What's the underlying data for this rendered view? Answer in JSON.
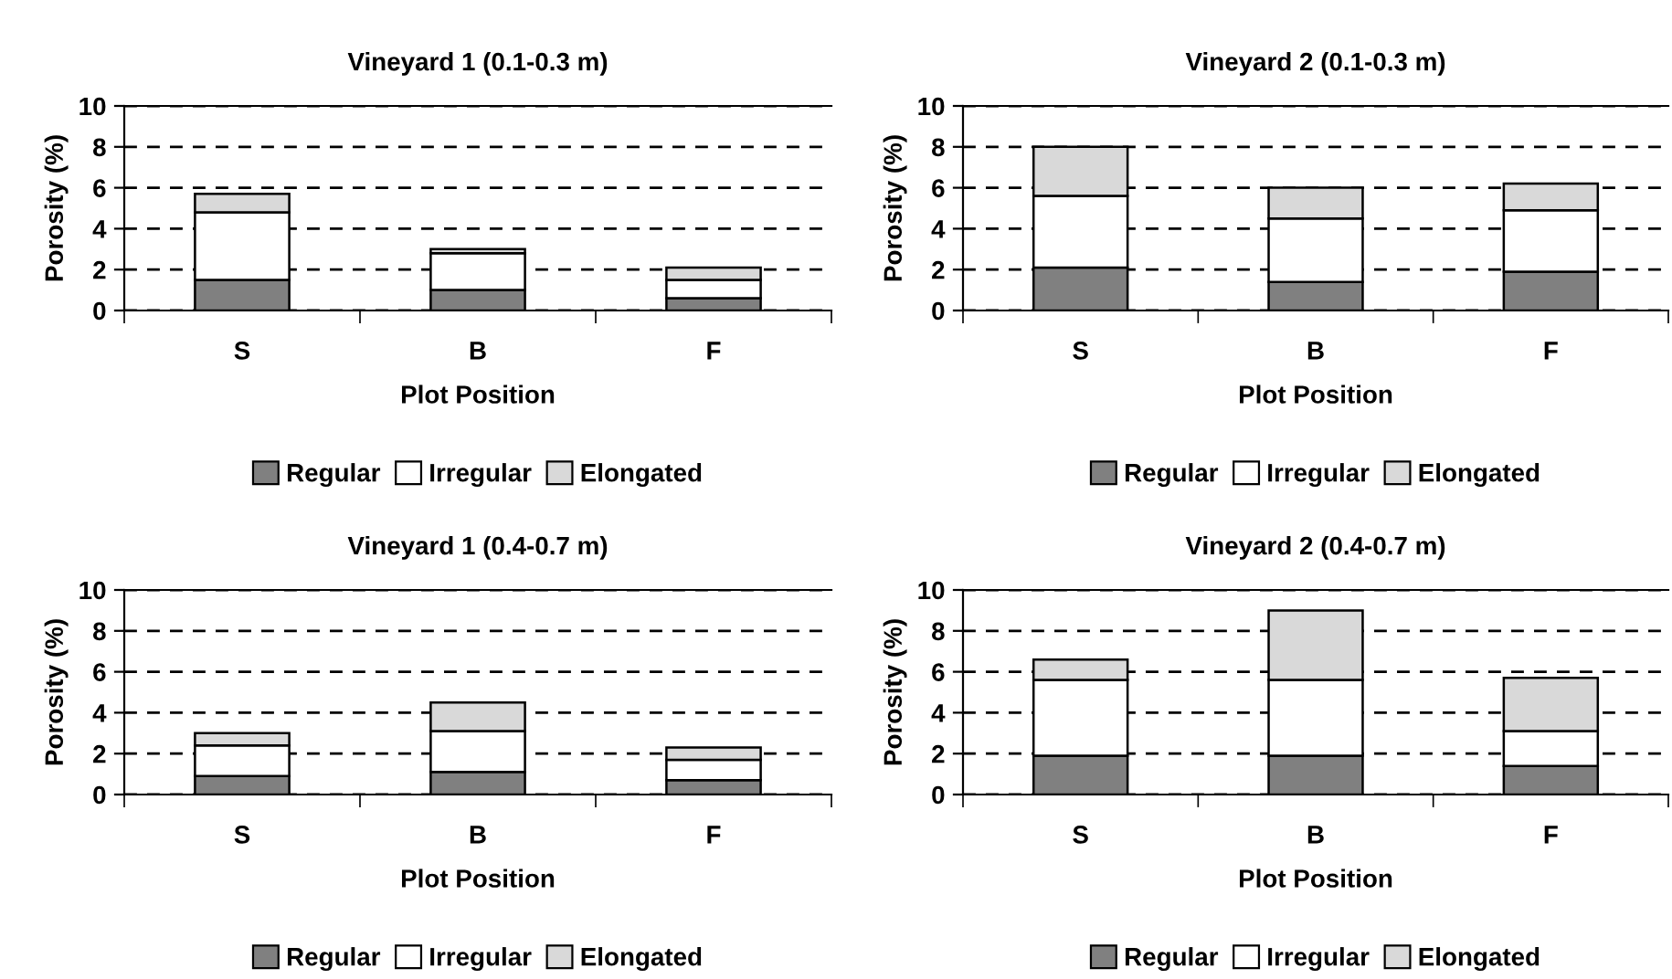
{
  "chart_data": [
    {
      "type": "bar",
      "stacked": true,
      "title": "Vineyard 1 (0.1-0.3 m)",
      "xlabel": "Plot Position",
      "ylabel": "Porosity (%)",
      "categories": [
        "S",
        "B",
        "F"
      ],
      "ylim": [
        0,
        10
      ],
      "yticks": [
        0,
        2,
        4,
        6,
        8,
        10
      ],
      "grid": "y",
      "legend": "bottom",
      "series": [
        {
          "name": "Regular",
          "color": "#808080",
          "values": [
            1.5,
            1.0,
            0.6
          ]
        },
        {
          "name": "Irregular",
          "color": "#ffffff",
          "values": [
            3.3,
            1.8,
            0.9
          ]
        },
        {
          "name": "Elongated",
          "color": "#d9d9d9",
          "values": [
            0.9,
            0.2,
            0.6
          ]
        }
      ]
    },
    {
      "type": "bar",
      "stacked": true,
      "title": "Vineyard 2 (0.1-0.3 m)",
      "xlabel": "Plot Position",
      "ylabel": "Porosity (%)",
      "categories": [
        "S",
        "B",
        "F"
      ],
      "ylim": [
        0,
        10
      ],
      "yticks": [
        0,
        2,
        4,
        6,
        8,
        10
      ],
      "grid": "y",
      "legend": "bottom",
      "series": [
        {
          "name": "Regular",
          "color": "#808080",
          "values": [
            2.1,
            1.4,
            1.9
          ]
        },
        {
          "name": "Irregular",
          "color": "#ffffff",
          "values": [
            3.5,
            3.1,
            3.0
          ]
        },
        {
          "name": "Elongated",
          "color": "#d9d9d9",
          "values": [
            2.4,
            1.5,
            1.3
          ]
        }
      ]
    },
    {
      "type": "bar",
      "stacked": true,
      "title": "Vineyard 1 (0.4-0.7 m)",
      "xlabel": "Plot Position",
      "ylabel": "Porosity (%)",
      "categories": [
        "S",
        "B",
        "F"
      ],
      "ylim": [
        0,
        10
      ],
      "yticks": [
        0,
        2,
        4,
        6,
        8,
        10
      ],
      "grid": "y",
      "legend": "bottom",
      "series": [
        {
          "name": "Regular",
          "color": "#808080",
          "values": [
            0.9,
            1.1,
            0.7
          ]
        },
        {
          "name": "Irregular",
          "color": "#ffffff",
          "values": [
            1.5,
            2.0,
            1.0
          ]
        },
        {
          "name": "Elongated",
          "color": "#d9d9d9",
          "values": [
            0.6,
            1.4,
            0.6
          ]
        }
      ]
    },
    {
      "type": "bar",
      "stacked": true,
      "title": "Vineyard 2 (0.4-0.7 m)",
      "xlabel": "Plot Position",
      "ylabel": "Porosity (%)",
      "categories": [
        "S",
        "B",
        "F"
      ],
      "ylim": [
        0,
        10
      ],
      "yticks": [
        0,
        2,
        4,
        6,
        8,
        10
      ],
      "grid": "y",
      "legend": "bottom",
      "series": [
        {
          "name": "Regular",
          "color": "#808080",
          "values": [
            1.9,
            1.9,
            1.4
          ]
        },
        {
          "name": "Irregular",
          "color": "#ffffff",
          "values": [
            3.7,
            3.7,
            1.7
          ]
        },
        {
          "name": "Elongated",
          "color": "#d9d9d9",
          "values": [
            1.0,
            3.4,
            2.6
          ]
        }
      ]
    }
  ]
}
